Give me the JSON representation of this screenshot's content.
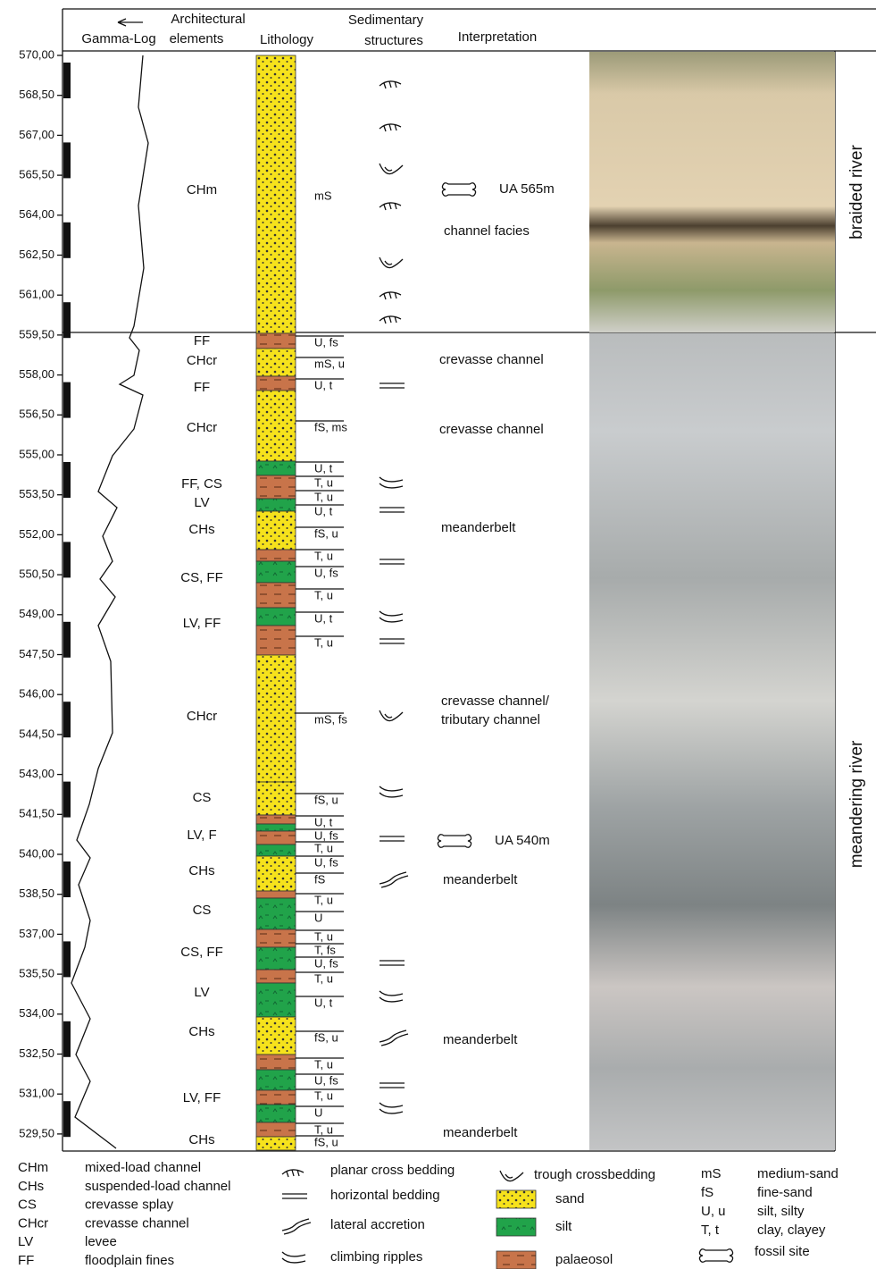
{
  "header": {
    "gamma_log": "Gamma-Log",
    "architectural_elements": [
      "Architectural",
      "elements"
    ],
    "lithology": "Lithology",
    "sedimentary_structures": [
      "Sedimentary",
      "structures"
    ],
    "interpretation": "Interpretation"
  },
  "depth_labels": [
    "570,00",
    "568,50",
    "567,00",
    "565,50",
    "564,00",
    "562,50",
    "561,00",
    "559,50",
    "558,00",
    "556,50",
    "555,00",
    "553,50",
    "552,00",
    "550,50",
    "549,00",
    "547,50",
    "546,00",
    "544,50",
    "543,00",
    "541,50",
    "540,00",
    "538,50",
    "537,00",
    "535,50",
    "534,00",
    "532,50",
    "531,00",
    "529,50"
  ],
  "architectural_elements": [
    "CHm",
    "FF",
    "CHcr",
    "FF",
    "CHcr",
    "FF, CS",
    "LV",
    "CHs",
    "CS, FF",
    "LV, FF",
    "CHcr",
    "CS",
    "LV, F",
    "CHs",
    "CS",
    "CS, FF",
    "LV",
    "CHs",
    "LV, FF",
    "CHs"
  ],
  "lithology_labels": [
    "mS",
    "U, fs",
    "mS, u",
    "U, t",
    "fS, ms",
    "U, t",
    "T, u",
    "T, u",
    "U, t",
    "fS, u",
    "T, u",
    "U, fs",
    "T, u",
    "U, t",
    "T, u",
    "mS, fs",
    "fS, u",
    "U, t",
    "U, fs",
    "T, u",
    "U, fs",
    "fS",
    "T, u",
    "U",
    "T, u",
    "T, fs",
    "U, fs",
    "T, u",
    "U, t",
    "fS, u",
    "T, u",
    "U, fs",
    "T, u",
    "U",
    "T, u",
    "fS, u"
  ],
  "interpretation": [
    "channel facies",
    "crevasse channel",
    "crevasse channel",
    "meanderbelt",
    "crevasse channel/",
    "tributary channel",
    "meanderbelt",
    "meanderbelt",
    "meanderbelt"
  ],
  "fossil_sites": [
    "UA 565m",
    "UA 540m"
  ],
  "environments": [
    "braided river",
    "meandering river"
  ],
  "legend": {
    "abbreviations": [
      {
        "code": "CHm",
        "meaning": "mixed-load channel"
      },
      {
        "code": "CHs",
        "meaning": "suspended-load channel"
      },
      {
        "code": "CS",
        "meaning": "crevasse splay"
      },
      {
        "code": "CHcr",
        "meaning": "crevasse channel"
      },
      {
        "code": "LV",
        "meaning": "levee"
      },
      {
        "code": "FF",
        "meaning": "floodplain fines"
      }
    ],
    "structures": [
      "planar cross bedding",
      "horizontal bedding",
      "lateral accretion",
      "climbing ripples",
      "trough crossbedding"
    ],
    "lithology": [
      "sand",
      "silt",
      "palaeosol"
    ],
    "grain_codes": [
      {
        "code": "mS",
        "meaning": "medium-sand"
      },
      {
        "code": "fS",
        "meaning": "fine-sand"
      },
      {
        "code": "U, u",
        "meaning": "silt, silty"
      },
      {
        "code": "T, t",
        "meaning": "clay, clayey"
      }
    ],
    "fossil": "fossil site"
  }
}
